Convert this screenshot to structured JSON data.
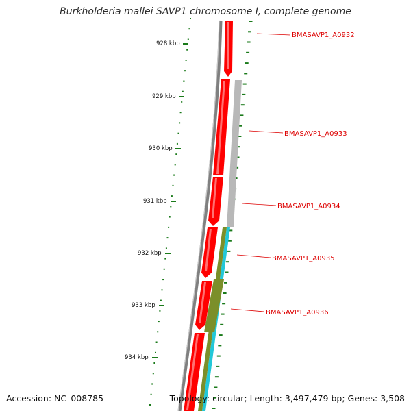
{
  "title": "Burkholderia mallei SAVP1 chromosome I, complete genome",
  "footer": {
    "accession": "Accession: NC_008785",
    "summary": "Topology: circular; Length: 3,497,479 bp; Genes: 3,508"
  },
  "scale": {
    "ticks": [
      {
        "label": "928 kbp"
      },
      {
        "label": "929 kbp"
      },
      {
        "label": "930 kbp"
      },
      {
        "label": "931 kbp"
      },
      {
        "label": "932 kbp"
      },
      {
        "label": "933 kbp"
      },
      {
        "label": "934 kbp"
      }
    ],
    "tick_color": "#1a7a1a"
  },
  "genes": [
    {
      "label": "BMASAVP1_A0932"
    },
    {
      "label": "BMASAVP1_A0933"
    },
    {
      "label": "BMASAVP1_A0934"
    },
    {
      "label": "BMASAVP1_A0935"
    },
    {
      "label": "BMASAVP1_A0936"
    }
  ],
  "colors": {
    "gene_label": "#dd0000",
    "cds": "#ff0000",
    "backbone": "#808080",
    "gc_gray": "#b8b8b8",
    "olive": "#7b8f2a",
    "cyan": "#22c8d8"
  }
}
